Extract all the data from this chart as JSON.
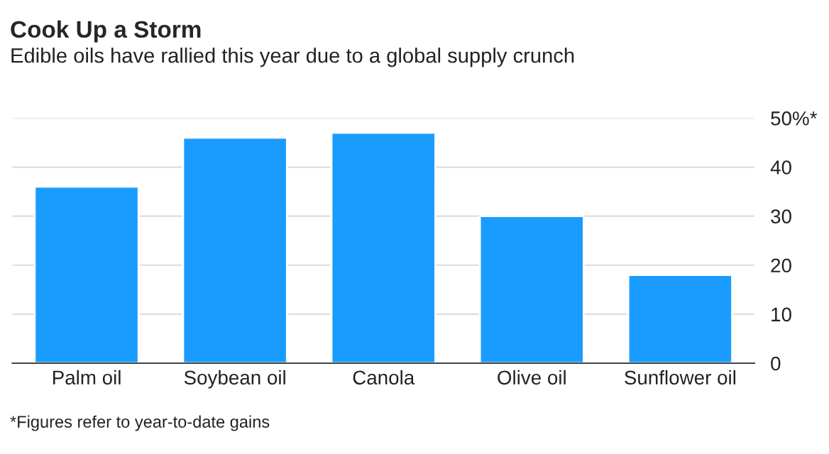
{
  "chart_data": {
    "type": "bar",
    "title": "Cook Up a Storm",
    "subtitle": "Edible oils have rallied this year due to a global supply crunch",
    "categories": [
      "Palm oil",
      "Soybean oil",
      "Canola",
      "Olive oil",
      "Sunflower oil"
    ],
    "values": [
      36,
      46,
      47,
      30,
      18
    ],
    "color": "#1a9cff",
    "ylim": [
      0,
      50
    ],
    "yticks": [
      0,
      10,
      20,
      30,
      40,
      {
        "value": 50,
        "label": "50%*"
      }
    ],
    "grid": "y",
    "annotations": [
      "*Figures refer to year-to-date gains"
    ]
  }
}
